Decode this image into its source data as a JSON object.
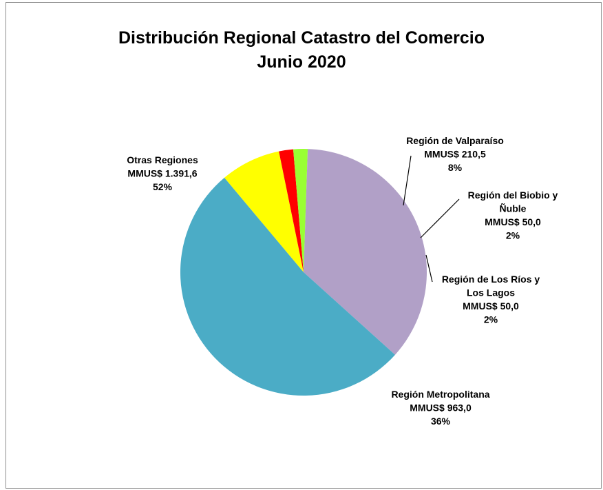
{
  "chart_data": {
    "type": "pie",
    "title": "Distribución Regional Catastro del Comercio",
    "subtitle": "Junio 2020",
    "slices": [
      {
        "label_lines": [
          "Región de Valparaíso",
          "MMUS$ 210,5",
          "8%"
        ],
        "value": 210.5,
        "percent": 8,
        "color": "#ffff00"
      },
      {
        "label_lines": [
          "Región del Biobio y",
          "Ñuble",
          "MMUS$ 50,0",
          "2%"
        ],
        "value": 50.0,
        "percent": 2,
        "color": "#ff0000"
      },
      {
        "label_lines": [
          "Región de Los Ríos y",
          "Los Lagos",
          "MMUS$ 50,0",
          "2%"
        ],
        "value": 50.0,
        "percent": 2,
        "color": "#99ff33"
      },
      {
        "label_lines": [
          "Región Metropolitana",
          "MMUS$ 963,0",
          "36%"
        ],
        "value": 963.0,
        "percent": 36,
        "color": "#b1a0c7"
      },
      {
        "label_lines": [
          "Otras Regiones",
          "MMUS$ 1.391,6",
          "52%"
        ],
        "value": 1391.6,
        "percent": 52,
        "color": "#4bacc6"
      }
    ]
  }
}
